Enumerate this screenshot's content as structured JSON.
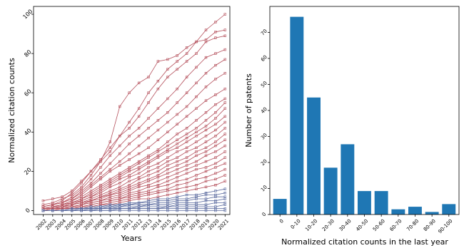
{
  "chart_data": [
    {
      "type": "line",
      "xlabel": "Years",
      "ylabel": "Normalized citation counts",
      "x": [
        2002,
        2003,
        2004,
        2005,
        2006,
        2007,
        2008,
        2009,
        2010,
        2011,
        2012,
        2013,
        2014,
        2015,
        2016,
        2017,
        2018,
        2019,
        2020,
        2021
      ],
      "x_tick_labels": [
        "2002",
        "2003",
        "2004",
        "2005",
        "2006",
        "2007",
        "2008",
        "2009",
        "2010",
        "2011",
        "2012",
        "2013",
        "2014",
        "2015",
        "2016",
        "2017",
        "2018",
        "2019",
        "2020",
        "2021"
      ],
      "ylim": [
        -2,
        104
      ],
      "y_ticks": [
        0,
        20,
        40,
        60,
        80,
        100
      ],
      "y_tick_labels": [
        "0",
        "20",
        "40",
        "60",
        "80",
        "100"
      ],
      "colors": {
        "upper_series": "#b5505c",
        "lower_series": "#5a6a9e"
      },
      "series": [
        {
          "group": "upper",
          "values": [
            5,
            6,
            7,
            10,
            15,
            20,
            25,
            30,
            38,
            45,
            52,
            60,
            66,
            72,
            76,
            80,
            86,
            92,
            96,
            100
          ]
        },
        {
          "group": "upper",
          "values": [
            3,
            4,
            6,
            8,
            12,
            18,
            25,
            35,
            53,
            60,
            65,
            68,
            76,
            77,
            79,
            83,
            86,
            87,
            91,
            92
          ]
        },
        {
          "group": "upper",
          "values": [
            2,
            3,
            5,
            9,
            14,
            20,
            26,
            32,
            38,
            42,
            48,
            55,
            62,
            68,
            72,
            76,
            80,
            86,
            88,
            89
          ]
        },
        {
          "group": "upper",
          "values": [
            2,
            3,
            4,
            7,
            11,
            16,
            22,
            28,
            33,
            38,
            42,
            47,
            52,
            57,
            62,
            68,
            73,
            78,
            80,
            82
          ]
        },
        {
          "group": "upper",
          "values": [
            2,
            3,
            4,
            6,
            10,
            14,
            19,
            24,
            29,
            34,
            38,
            42,
            46,
            50,
            55,
            60,
            65,
            70,
            74,
            77
          ]
        },
        {
          "group": "upper",
          "values": [
            2,
            3,
            4,
            6,
            9,
            13,
            17,
            21,
            25,
            29,
            33,
            37,
            41,
            45,
            49,
            53,
            58,
            63,
            67,
            70
          ]
        },
        {
          "group": "upper",
          "values": [
            1,
            2,
            3,
            5,
            8,
            12,
            16,
            20,
            23,
            26,
            29,
            32,
            36,
            40,
            44,
            48,
            52,
            56,
            59,
            62
          ]
        },
        {
          "group": "upper",
          "values": [
            1,
            2,
            3,
            5,
            7,
            10,
            13,
            16,
            19,
            22,
            25,
            28,
            31,
            35,
            39,
            42,
            46,
            50,
            54,
            57
          ]
        },
        {
          "group": "upper",
          "values": [
            1,
            2,
            3,
            4,
            6,
            9,
            12,
            15,
            18,
            21,
            24,
            27,
            30,
            33,
            36,
            39,
            42,
            46,
            50,
            55
          ]
        },
        {
          "group": "upper",
          "values": [
            1,
            2,
            3,
            4,
            6,
            8,
            11,
            14,
            17,
            20,
            22,
            25,
            28,
            31,
            34,
            37,
            40,
            43,
            47,
            52
          ]
        },
        {
          "group": "upper",
          "values": [
            1,
            2,
            2,
            4,
            5,
            7,
            10,
            13,
            16,
            18,
            21,
            24,
            27,
            30,
            32,
            35,
            38,
            41,
            44,
            48
          ]
        },
        {
          "group": "upper",
          "values": [
            1,
            2,
            2,
            3,
            5,
            7,
            9,
            12,
            14,
            17,
            19,
            22,
            24,
            27,
            30,
            32,
            35,
            38,
            41,
            45
          ]
        },
        {
          "group": "upper",
          "values": [
            1,
            1,
            2,
            3,
            4,
            6,
            8,
            10,
            12,
            15,
            17,
            20,
            22,
            25,
            27,
            30,
            32,
            35,
            38,
            42
          ]
        },
        {
          "group": "upper",
          "values": [
            1,
            1,
            2,
            3,
            4,
            5,
            7,
            9,
            11,
            13,
            16,
            18,
            20,
            23,
            25,
            27,
            30,
            32,
            35,
            39
          ]
        },
        {
          "group": "upper",
          "values": [
            0,
            1,
            2,
            3,
            4,
            5,
            7,
            8,
            10,
            12,
            14,
            16,
            18,
            21,
            23,
            25,
            28,
            30,
            33,
            36
          ]
        },
        {
          "group": "upper",
          "values": [
            0,
            1,
            2,
            2,
            3,
            5,
            6,
            8,
            9,
            11,
            13,
            15,
            17,
            19,
            21,
            23,
            25,
            28,
            30,
            33
          ]
        },
        {
          "group": "upper",
          "values": [
            0,
            1,
            1,
            2,
            3,
            4,
            5,
            7,
            8,
            10,
            12,
            13,
            15,
            17,
            19,
            21,
            23,
            25,
            27,
            30
          ]
        },
        {
          "group": "upper",
          "values": [
            0,
            1,
            1,
            2,
            3,
            4,
            5,
            6,
            7,
            9,
            10,
            12,
            13,
            15,
            17,
            19,
            21,
            22,
            24,
            27
          ]
        },
        {
          "group": "upper",
          "values": [
            0,
            1,
            1,
            2,
            2,
            3,
            4,
            5,
            6,
            8,
            9,
            10,
            12,
            13,
            15,
            16,
            18,
            20,
            22,
            24
          ]
        },
        {
          "group": "upper",
          "values": [
            0,
            0,
            1,
            1,
            2,
            3,
            4,
            5,
            6,
            7,
            8,
            9,
            10,
            11,
            13,
            14,
            16,
            17,
            19,
            21
          ]
        },
        {
          "group": "upper",
          "values": [
            0,
            0,
            1,
            1,
            2,
            2,
            3,
            4,
            5,
            6,
            7,
            8,
            9,
            10,
            11,
            12,
            13,
            15,
            16,
            18
          ]
        },
        {
          "group": "upper",
          "values": [
            0,
            0,
            1,
            1,
            1,
            2,
            3,
            3,
            4,
            5,
            6,
            6,
            7,
            8,
            9,
            10,
            11,
            12,
            13,
            15
          ]
        },
        {
          "group": "lower",
          "values": [
            0,
            0,
            0,
            1,
            1,
            2,
            2,
            3,
            3,
            4,
            4,
            5,
            6,
            6,
            7,
            8,
            8,
            9,
            10,
            11
          ]
        },
        {
          "group": "lower",
          "values": [
            0,
            0,
            0,
            1,
            1,
            1,
            2,
            2,
            3,
            3,
            4,
            4,
            5,
            5,
            6,
            6,
            7,
            8,
            8,
            9
          ]
        },
        {
          "group": "lower",
          "values": [
            0,
            0,
            0,
            0,
            1,
            1,
            1,
            2,
            2,
            3,
            3,
            3,
            4,
            4,
            5,
            5,
            6,
            6,
            7,
            7
          ]
        },
        {
          "group": "lower",
          "values": [
            0,
            0,
            0,
            0,
            1,
            1,
            1,
            1,
            2,
            2,
            2,
            3,
            3,
            3,
            4,
            4,
            4,
            5,
            5,
            6
          ]
        },
        {
          "group": "lower",
          "values": [
            0,
            0,
            0,
            0,
            0,
            1,
            1,
            1,
            1,
            1,
            2,
            2,
            2,
            2,
            3,
            3,
            3,
            3,
            4,
            4
          ]
        },
        {
          "group": "lower",
          "values": [
            0,
            0,
            0,
            0,
            0,
            0,
            1,
            1,
            1,
            1,
            1,
            1,
            1,
            2,
            2,
            2,
            2,
            2,
            2,
            3
          ]
        },
        {
          "group": "lower",
          "values": [
            0,
            0,
            0,
            0,
            0,
            0,
            0,
            0,
            1,
            1,
            1,
            1,
            1,
            1,
            1,
            1,
            1,
            1,
            1,
            1
          ]
        },
        {
          "group": "lower",
          "values": [
            0,
            0,
            0,
            0,
            0,
            0,
            0,
            0,
            0,
            0,
            0,
            0,
            0,
            0,
            0,
            0,
            0,
            0,
            0,
            0
          ]
        }
      ]
    },
    {
      "type": "bar",
      "xlabel": "Normalized citation counts in the last year",
      "ylabel": "Number of patents",
      "categories": [
        "0",
        "0-10",
        "10-20",
        "20-30",
        "30-40",
        "40-50",
        "50-60",
        "60-70",
        "70-80",
        "80-90",
        "90-100"
      ],
      "values": [
        6,
        76,
        45,
        18,
        27,
        9,
        9,
        2,
        3,
        1,
        4
      ],
      "ylim": [
        0,
        80
      ],
      "y_ticks": [
        0,
        10,
        20,
        30,
        40,
        50,
        60,
        70
      ],
      "y_tick_labels": [
        "0",
        "10",
        "20",
        "30",
        "40",
        "50",
        "60",
        "70"
      ],
      "colors": {
        "bar": "#1f77b4"
      }
    }
  ]
}
